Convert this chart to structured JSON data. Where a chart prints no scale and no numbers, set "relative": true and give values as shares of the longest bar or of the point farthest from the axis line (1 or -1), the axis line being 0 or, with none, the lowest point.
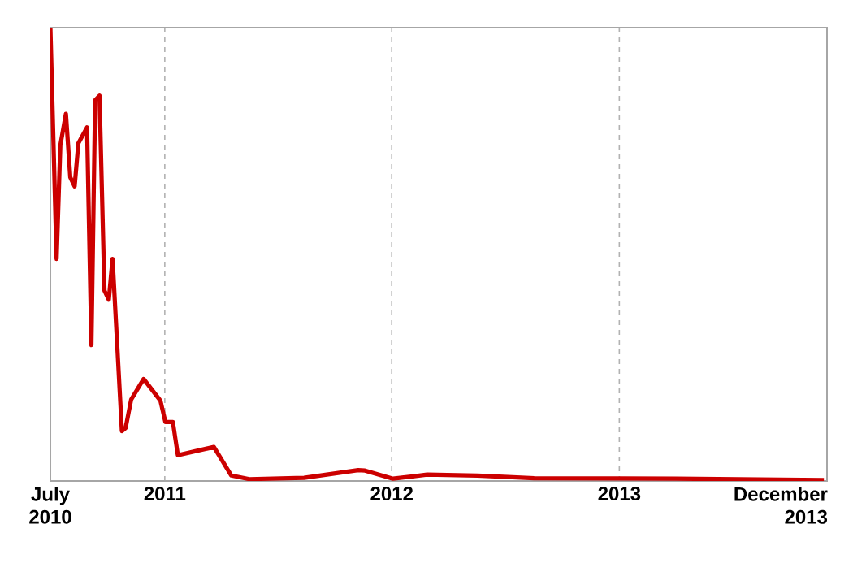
{
  "chart_data": {
    "type": "line",
    "relative": true,
    "grid": "x",
    "line_style": "solid",
    "marker": "none",
    "xlim": [
      "2010-07-01",
      "2013-12-01"
    ],
    "xticks": [
      {
        "value": "2010-07-01",
        "label": "July 2010"
      },
      {
        "value": "2011-01-01",
        "label": "2011"
      },
      {
        "value": "2012-01-01",
        "label": "2012"
      },
      {
        "value": "2013-01-01",
        "label": "2013"
      },
      {
        "value": "2013-12-01",
        "label": "December 2013"
      }
    ],
    "x": [
      "2010-07-01",
      "2010-07-11",
      "2010-07-17",
      "2010-07-26",
      "2010-08-02",
      "2010-08-09",
      "2010-08-15",
      "2010-08-29",
      "2010-09-05",
      "2010-09-11",
      "2010-09-18",
      "2010-09-26",
      "2010-10-03",
      "2010-10-09",
      "2010-10-24",
      "2010-10-30",
      "2010-11-08",
      "2010-11-28",
      "2010-12-25",
      "2011-01-02",
      "2011-01-14",
      "2011-01-22",
      "2011-03-21",
      "2011-04-18",
      "2011-05-17",
      "2011-08-13",
      "2011-11-08",
      "2011-11-19",
      "2012-01-03",
      "2012-02-27",
      "2012-05-18",
      "2012-08-17",
      "2013-04-02",
      "2013-11-26"
    ],
    "series": [
      {
        "color": "#cc0000",
        "values": [
          1.0,
          0.49,
          0.74,
          0.81,
          0.67,
          0.65,
          0.745,
          0.78,
          0.3,
          0.84,
          0.85,
          0.42,
          0.4,
          0.49,
          0.11,
          0.117,
          0.18,
          0.225,
          0.177,
          0.13,
          0.13,
          0.057,
          0.075,
          0.012,
          0.004,
          0.007,
          0.024,
          0.023,
          0.005,
          0.014,
          0.012,
          0.006,
          0.005,
          0.002
        ]
      }
    ]
  }
}
